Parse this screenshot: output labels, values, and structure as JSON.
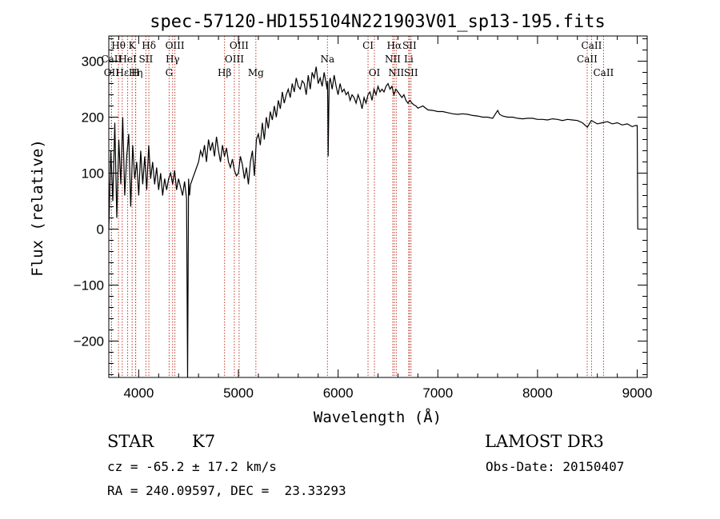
{
  "chart_data": {
    "type": "line",
    "title": "spec-57120-HD155104N221903V01_sp13-195.fits",
    "xlabel": "Wavelength (Å)",
    "ylabel": "Flux (relative)",
    "xlim": [
      3700,
      9100
    ],
    "ylim": [
      -265,
      345
    ],
    "x_ticks": [
      4000,
      5000,
      6000,
      7000,
      8000,
      9000
    ],
    "y_ticks": [
      -200,
      -100,
      0,
      100,
      200,
      300
    ],
    "grid": false,
    "series": [
      {
        "x": [
          3700,
          3720,
          3740,
          3760,
          3780,
          3800,
          3820,
          3840,
          3860,
          3880,
          3900,
          3920,
          3940,
          3960,
          3980,
          4000,
          4020,
          4040,
          4060,
          4080,
          4100,
          4120,
          4140,
          4160,
          4180,
          4200,
          4220,
          4240,
          4260,
          4280,
          4300,
          4320,
          4340,
          4360,
          4380,
          4400,
          4420,
          4440,
          4460,
          4480,
          4490,
          4500,
          4510,
          4520,
          4540,
          4560,
          4580,
          4600,
          4620,
          4640,
          4660,
          4680,
          4700,
          4720,
          4740,
          4760,
          4780,
          4800,
          4820,
          4840,
          4860,
          4880,
          4900,
          4920,
          4940,
          4960,
          4980,
          5000,
          5020,
          5040,
          5060,
          5080,
          5100,
          5120,
          5140,
          5160,
          5180,
          5200,
          5220,
          5240,
          5260,
          5280,
          5300,
          5320,
          5340,
          5360,
          5380,
          5400,
          5420,
          5440,
          5460,
          5480,
          5500,
          5520,
          5540,
          5560,
          5580,
          5600,
          5620,
          5640,
          5660,
          5680,
          5700,
          5720,
          5740,
          5760,
          5780,
          5800,
          5820,
          5840,
          5860,
          5880,
          5890,
          5893,
          5896,
          5900,
          5910,
          5920,
          5940,
          5960,
          5980,
          6000,
          6020,
          6040,
          6060,
          6080,
          6100,
          6120,
          6140,
          6160,
          6180,
          6200,
          6220,
          6240,
          6260,
          6280,
          6300,
          6320,
          6340,
          6360,
          6380,
          6400,
          6420,
          6440,
          6460,
          6480,
          6500,
          6520,
          6540,
          6560,
          6580,
          6600,
          6620,
          6640,
          6660,
          6680,
          6700,
          6720,
          6740,
          6760,
          6780,
          6800,
          6850,
          6900,
          6950,
          7000,
          7050,
          7100,
          7150,
          7200,
          7250,
          7300,
          7350,
          7400,
          7450,
          7500,
          7550,
          7600,
          7620,
          7650,
          7700,
          7750,
          7800,
          7850,
          7900,
          7950,
          8000,
          8050,
          8100,
          8150,
          8200,
          8250,
          8300,
          8350,
          8400,
          8450,
          8500,
          8540,
          8560,
          8600,
          8650,
          8700,
          8750,
          8800,
          8850,
          8900,
          8950,
          8980,
          9000,
          9005
        ],
        "y": [
          0,
          140,
          50,
          190,
          20,
          160,
          80,
          200,
          60,
          130,
          170,
          40,
          150,
          90,
          120,
          60,
          140,
          80,
          130,
          70,
          150,
          90,
          120,
          80,
          110,
          70,
          100,
          60,
          90,
          70,
          90,
          100,
          80,
          105,
          70,
          90,
          75,
          60,
          85,
          55,
          -265,
          90,
          60,
          80,
          90,
          100,
          110,
          120,
          140,
          130,
          150,
          120,
          160,
          140,
          155,
          130,
          165,
          140,
          120,
          150,
          130,
          145,
          120,
          110,
          125,
          105,
          95,
          100,
          130,
          115,
          90,
          110,
          80,
          120,
          140,
          95,
          160,
          170,
          150,
          190,
          160,
          200,
          180,
          210,
          195,
          220,
          200,
          230,
          215,
          245,
          225,
          240,
          250,
          235,
          260,
          245,
          270,
          255,
          250,
          265,
          260,
          240,
          275,
          250,
          280,
          270,
          290,
          260,
          270,
          255,
          280,
          260,
          250,
          265,
          230,
          130,
          260,
          270,
          250,
          275,
          255,
          240,
          260,
          245,
          250,
          240,
          245,
          230,
          240,
          235,
          225,
          240,
          230,
          215,
          235,
          225,
          240,
          245,
          230,
          250,
          240,
          255,
          245,
          250,
          245,
          255,
          260,
          250,
          255,
          240,
          250,
          245,
          240,
          235,
          240,
          230,
          225,
          230,
          225,
          222,
          220,
          216,
          220,
          213,
          212,
          210,
          210,
          208,
          206,
          205,
          206,
          205,
          203,
          202,
          200,
          200,
          198,
          212,
          205,
          202,
          200,
          200,
          198,
          197,
          198,
          198,
          196,
          196,
          195,
          197,
          196,
          194,
          196,
          195,
          194,
          190,
          182,
          194,
          192,
          188,
          190,
          192,
          188,
          190,
          186,
          188,
          183,
          185,
          185,
          0
        ]
      }
    ],
    "lines": [
      {
        "label": "Hθ",
        "x": 3797,
        "row": 0
      },
      {
        "label": "K",
        "x": 3934,
        "row": 0
      },
      {
        "label": "Hδ",
        "x": 4102,
        "row": 0
      },
      {
        "label": "OIII",
        "x": 4363,
        "row": 0
      },
      {
        "label": "OIII",
        "x": 5007,
        "row": 0
      },
      {
        "label": "CI",
        "x": 6300,
        "row": 0
      },
      {
        "label": "Hα",
        "x": 6563,
        "row": 0
      },
      {
        "label": "SII",
        "x": 6716,
        "row": 0
      },
      {
        "label": "CaII",
        "x": 8542,
        "row": 0
      },
      {
        "label": "CaII",
        "x": 3727,
        "row": 1
      },
      {
        "label": "HeI",
        "x": 3889,
        "row": 1
      },
      {
        "label": "SII",
        "x": 4072,
        "row": 1
      },
      {
        "label": "Hγ",
        "x": 4340,
        "row": 1
      },
      {
        "label": "OIII",
        "x": 4959,
        "row": 1
      },
      {
        "label": "Na",
        "x": 5893,
        "row": 1
      },
      {
        "label": "NII",
        "x": 6548,
        "row": 1
      },
      {
        "label": "Li",
        "x": 6708,
        "row": 1
      },
      {
        "label": "CaII",
        "x": 8498,
        "row": 1
      },
      {
        "label": "OII",
        "x": 3727,
        "row": 2
      },
      {
        "label": "Hε",
        "x": 3835,
        "row": 2
      },
      {
        "label": "Hη",
        "x": 3970,
        "row": 2
      },
      {
        "label": "H",
        "x": 3968,
        "row": 2
      },
      {
        "label": "G",
        "x": 4305,
        "row": 2
      },
      {
        "label": "Hβ",
        "x": 4861,
        "row": 2
      },
      {
        "label": "Mg",
        "x": 5175,
        "row": 2
      },
      {
        "label": "OI",
        "x": 6364,
        "row": 2
      },
      {
        "label": "NII",
        "x": 6583,
        "row": 2
      },
      {
        "label": "SII",
        "x": 6731,
        "row": 2
      },
      {
        "label": "CaII",
        "x": 8662,
        "row": 2
      }
    ]
  },
  "info": {
    "object_class": "STAR",
    "subclass": "K7",
    "survey": "LAMOST DR3",
    "cz": "cz = -65.2 ± 17.2 km/s",
    "obs_date": "Obs-Date: 20150407",
    "coords": "RA = 240.09597, DEC =  23.33293"
  }
}
